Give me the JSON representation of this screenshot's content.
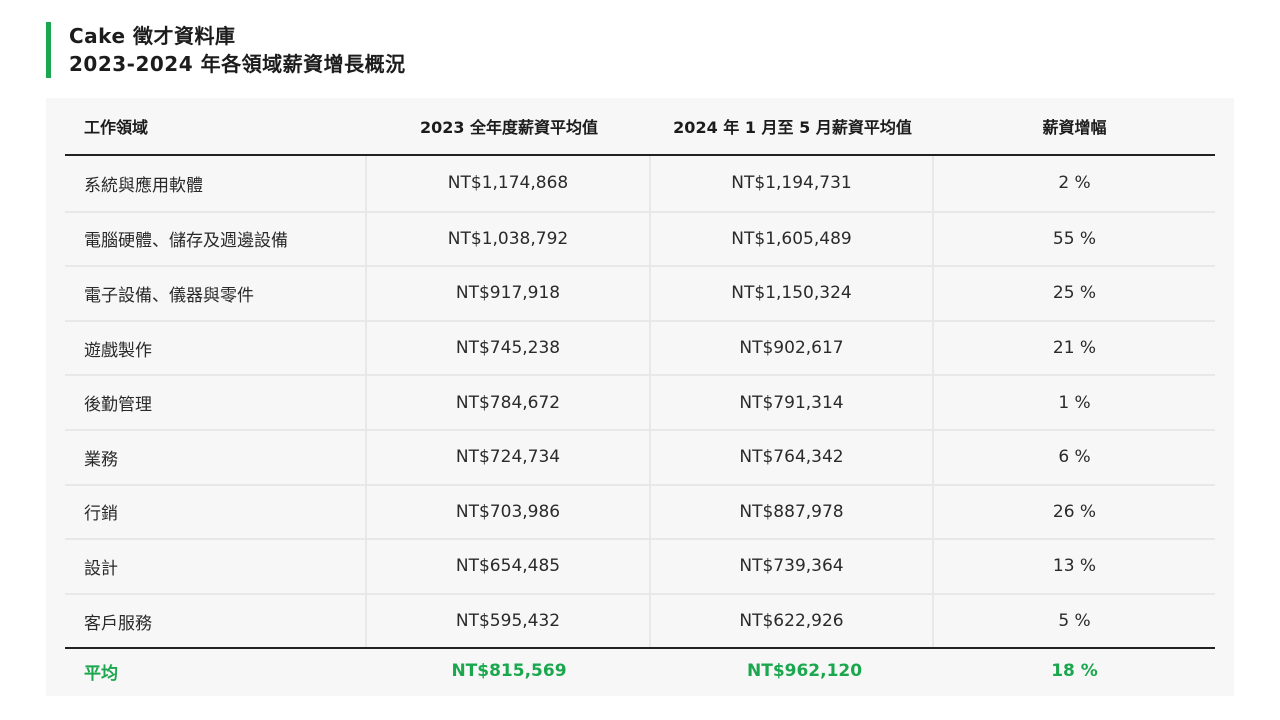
{
  "title": {
    "line1": "Cake 徵才資料庫",
    "line2": "2023-2024 年各領域薪資增長概況"
  },
  "accent_color": "#1aa74d",
  "table": {
    "headers": [
      "工作領域",
      "2023 全年度薪資平均值",
      "2024 年 1 月至 5 月薪資平均值",
      "薪資增幅"
    ],
    "rows": [
      {
        "field": "系統與應用軟體",
        "salary_2023": "NT$1,174,868",
        "salary_2024": "NT$1,194,731",
        "growth": "2 %"
      },
      {
        "field": "電腦硬體、儲存及週邊設備",
        "salary_2023": "NT$1,038,792",
        "salary_2024": "NT$1,605,489",
        "growth": "55 %"
      },
      {
        "field": "電子設備、儀器與零件",
        "salary_2023": "NT$917,918",
        "salary_2024": "NT$1,150,324",
        "growth": "25 %"
      },
      {
        "field": "遊戲製作",
        "salary_2023": "NT$745,238",
        "salary_2024": "NT$902,617",
        "growth": "21 %"
      },
      {
        "field": "後勤管理",
        "salary_2023": "NT$784,672",
        "salary_2024": "NT$791,314",
        "growth": "1 %"
      },
      {
        "field": "業務",
        "salary_2023": "NT$724,734",
        "salary_2024": "NT$764,342",
        "growth": "6 %"
      },
      {
        "field": "行銷",
        "salary_2023": "NT$703,986",
        "salary_2024": "NT$887,978",
        "growth": "26 %"
      },
      {
        "field": "設計",
        "salary_2023": "NT$654,485",
        "salary_2024": "NT$739,364",
        "growth": "13 %"
      },
      {
        "field": "客戶服務",
        "salary_2023": "NT$595,432",
        "salary_2024": "NT$622,926",
        "growth": "5 %"
      }
    ],
    "average": {
      "label": "平均",
      "salary_2023": "NT$815,569",
      "salary_2024": "NT$962,120",
      "growth": "18 %"
    }
  }
}
